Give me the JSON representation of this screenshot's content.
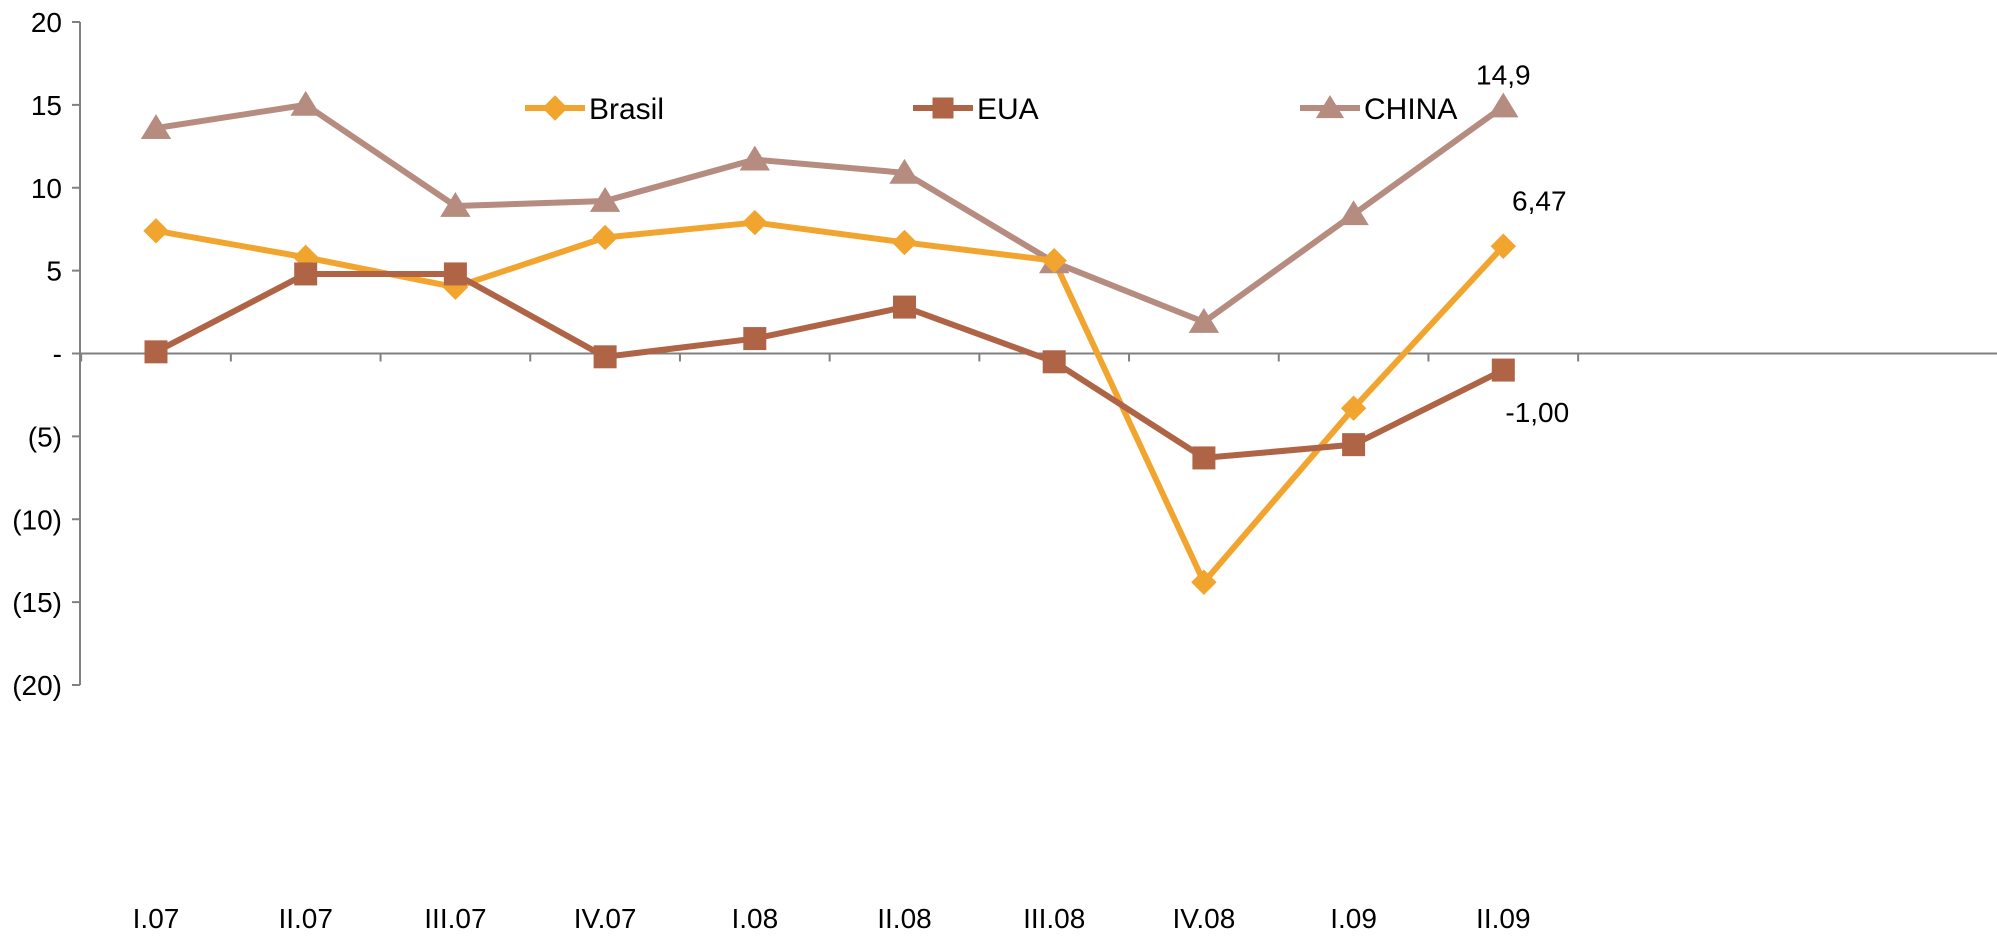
{
  "chart_data": {
    "type": "line",
    "categories": [
      "I.07",
      "II.07",
      "III.07",
      "IV.07",
      "I.08",
      "II.08",
      "III.08",
      "IV.08",
      "I.09",
      "II.09"
    ],
    "y_ticks": [
      {
        "value": 20,
        "label": "20"
      },
      {
        "value": 15,
        "label": "15"
      },
      {
        "value": 10,
        "label": "10"
      },
      {
        "value": 5,
        "label": "5"
      },
      {
        "value": 0,
        "label": "-"
      },
      {
        "value": -5,
        "label": "(5)"
      },
      {
        "value": -10,
        "label": "(10)"
      },
      {
        "value": -15,
        "label": "(15)"
      },
      {
        "value": -20,
        "label": "(20)"
      }
    ],
    "ylim": [
      -20,
      20
    ],
    "grid": false,
    "legend_position": "top",
    "series": [
      {
        "name": "Brasil",
        "marker": "diamond",
        "color": "#F2A52E",
        "values": [
          7.4,
          5.8,
          4.0,
          7.0,
          7.9,
          6.7,
          5.6,
          -13.8,
          -3.3,
          6.47
        ]
      },
      {
        "name": "EUA",
        "marker": "square",
        "color": "#AF6446",
        "values": [
          0.1,
          4.8,
          4.8,
          -0.2,
          0.9,
          2.8,
          -0.5,
          -6.3,
          -5.5,
          -1.0
        ]
      },
      {
        "name": "CHINA",
        "marker": "triangle",
        "color": "#B58C7F",
        "values": [
          13.6,
          15.0,
          8.9,
          9.2,
          11.7,
          10.9,
          5.5,
          1.9,
          8.4,
          14.9
        ]
      }
    ],
    "annotations": [
      {
        "series": "CHINA",
        "index": 9,
        "text": "14,9"
      },
      {
        "series": "Brasil",
        "index": 9,
        "text": "6,47"
      },
      {
        "series": "EUA",
        "index": 9,
        "text": "-1,00"
      }
    ]
  }
}
